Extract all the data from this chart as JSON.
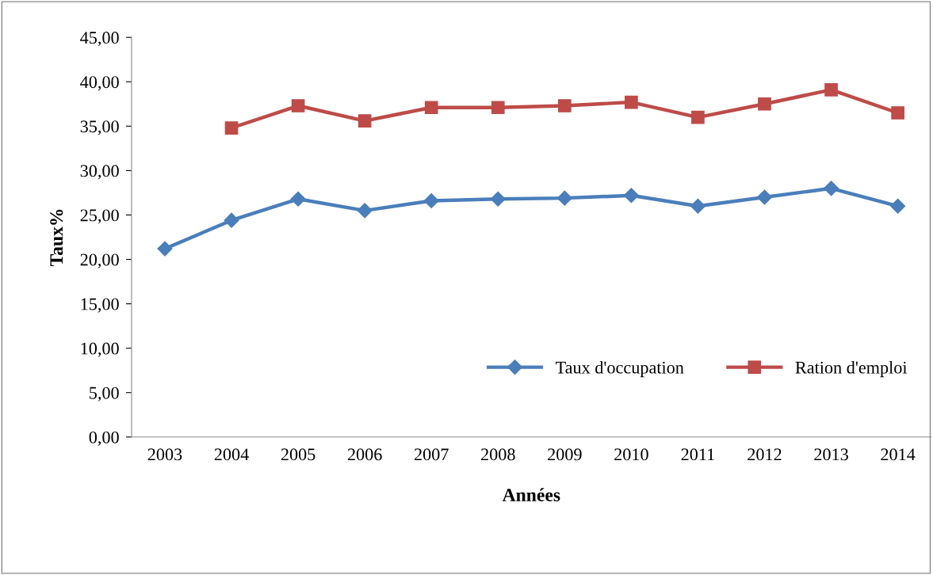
{
  "chart_data": {
    "type": "line",
    "xlabel": "Années",
    "ylabel": "Taux%",
    "categories": [
      "2003",
      "2004",
      "2005",
      "2006",
      "2007",
      "2008",
      "2009",
      "2010",
      "2011",
      "2012",
      "2013",
      "2014"
    ],
    "series": [
      {
        "name": "Taux d'occupation",
        "color": "#4a7ebb",
        "marker": "diamond",
        "values": [
          21.2,
          24.4,
          26.8,
          25.5,
          26.6,
          26.8,
          26.9,
          27.2,
          26.0,
          27.0,
          28.0,
          26.0
        ]
      },
      {
        "name": "Ration d'emploi",
        "color": "#be4b48",
        "marker": "square",
        "values": [
          null,
          34.8,
          37.3,
          35.6,
          37.1,
          37.1,
          37.3,
          37.7,
          36.0,
          37.5,
          39.1,
          36.5
        ]
      }
    ],
    "ylim": [
      0,
      45
    ],
    "yticks": [
      {
        "value": 0,
        "label": "0,00"
      },
      {
        "value": 5,
        "label": "5,00"
      },
      {
        "value": 10,
        "label": "10,00"
      },
      {
        "value": 15,
        "label": "15,00"
      },
      {
        "value": 20,
        "label": "20,00"
      },
      {
        "value": 25,
        "label": "25,00"
      },
      {
        "value": 30,
        "label": "30,00"
      },
      {
        "value": 35,
        "label": "35,00"
      },
      {
        "value": 40,
        "label": "40,00"
      },
      {
        "value": 45,
        "label": "45,00"
      }
    ],
    "grid": false,
    "legend": "bottom right",
    "line_style": "solid"
  }
}
